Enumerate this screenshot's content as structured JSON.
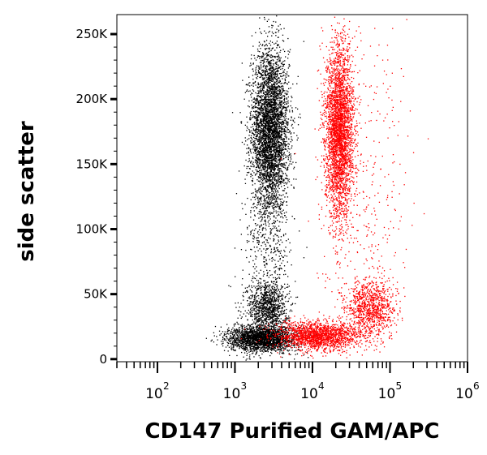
{
  "chart_data": {
    "type": "scatter",
    "title": "",
    "xlabel": "CD147 Purified GAM/APC",
    "ylabel": "side scatter",
    "xscale": "log",
    "xlim": [
      30,
      1000000
    ],
    "ylim": [
      -2000,
      265000
    ],
    "grid": false,
    "legend": "none",
    "yticks": [
      {
        "value": 0,
        "label": "0"
      },
      {
        "value": 50000,
        "label": "50K"
      },
      {
        "value": 100000,
        "label": "100K"
      },
      {
        "value": 150000,
        "label": "150K"
      },
      {
        "value": 200000,
        "label": "200K"
      },
      {
        "value": 250000,
        "label": "250K"
      }
    ],
    "xticks": [
      {
        "value": 100,
        "base": "10",
        "exp": "2"
      },
      {
        "value": 1000,
        "base": "10",
        "exp": "3"
      },
      {
        "value": 10000,
        "base": "10",
        "exp": "4"
      },
      {
        "value": 100000,
        "base": "10",
        "exp": "5"
      },
      {
        "value": 1000000,
        "base": "10",
        "exp": "6"
      }
    ],
    "series": [
      {
        "color": "#000000",
        "clusters": [
          {
            "x": 2800,
            "y": 175000,
            "n": 4200,
            "sx": 0.12,
            "sy": 32000
          },
          {
            "x": 2600,
            "y": 40000,
            "n": 1100,
            "sx": 0.13,
            "sy": 11000
          },
          {
            "x": 2200,
            "y": 16000,
            "n": 2200,
            "sx": 0.22,
            "sy": 5000
          },
          {
            "x": 2700,
            "y": 85000,
            "n": 250,
            "sx": 0.16,
            "sy": 18000
          }
        ]
      },
      {
        "color": "#ff0000",
        "clusters": [
          {
            "x": 22000,
            "y": 175000,
            "n": 3300,
            "sx": 0.09,
            "sy": 33000
          },
          {
            "x": 55000,
            "y": 40000,
            "n": 1000,
            "sx": 0.16,
            "sy": 11000
          },
          {
            "x": 12000,
            "y": 18000,
            "n": 1800,
            "sx": 0.27,
            "sy": 5500
          },
          {
            "x": 45000,
            "y": 130000,
            "n": 350,
            "sx": 0.3,
            "sy": 60000
          }
        ]
      }
    ]
  }
}
